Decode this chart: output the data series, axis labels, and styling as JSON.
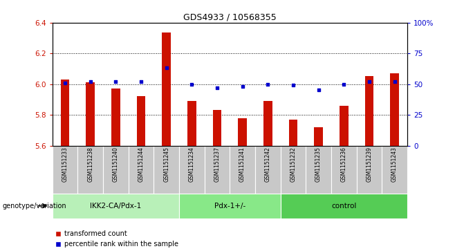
{
  "title": "GDS4933 / 10568355",
  "samples": [
    "GSM1151233",
    "GSM1151238",
    "GSM1151240",
    "GSM1151244",
    "GSM1151245",
    "GSM1151234",
    "GSM1151237",
    "GSM1151241",
    "GSM1151242",
    "GSM1151232",
    "GSM1151235",
    "GSM1151236",
    "GSM1151239",
    "GSM1151243"
  ],
  "red_values": [
    6.03,
    6.01,
    5.97,
    5.92,
    6.335,
    5.89,
    5.83,
    5.78,
    5.89,
    5.77,
    5.72,
    5.86,
    6.05,
    6.07
  ],
  "blue_values": [
    51,
    52,
    52,
    52,
    63,
    50,
    47,
    48,
    50,
    49,
    45,
    50,
    52,
    52
  ],
  "groups": [
    {
      "label": "IKK2-CA/Pdx-1",
      "start": 0,
      "end": 5
    },
    {
      "label": "Pdx-1+/-",
      "start": 5,
      "end": 9
    },
    {
      "label": "control",
      "start": 9,
      "end": 14
    }
  ],
  "group_colors": [
    "#b8f0b8",
    "#88e888",
    "#55cc55"
  ],
  "ylim_left": [
    5.6,
    6.4
  ],
  "ylim_right": [
    0,
    100
  ],
  "yticks_left": [
    5.6,
    5.8,
    6.0,
    6.2,
    6.4
  ],
  "yticks_right": [
    0,
    25,
    50,
    75,
    100
  ],
  "bar_color": "#cc1100",
  "dot_color": "#0000cc",
  "bar_width": 0.35,
  "genotype_label": "genotype/variation",
  "legend_items": [
    "transformed count",
    "percentile rank within the sample"
  ],
  "grid_lines": [
    5.8,
    6.0,
    6.2
  ],
  "sample_bg": "#c8c8c8"
}
